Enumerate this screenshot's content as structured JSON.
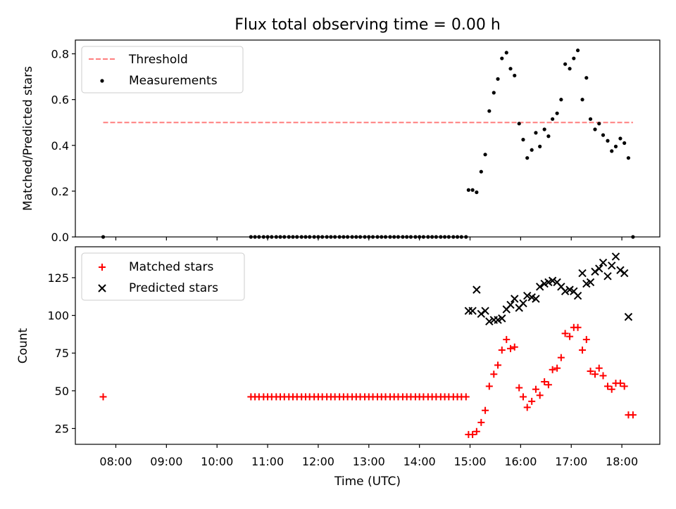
{
  "chart_data": [
    {
      "panel": "top",
      "type": "scatter",
      "title": "Flux total observing time = 0.00 h",
      "xlabel": "",
      "ylabel": "Matched/Predicted stars",
      "x_unit": "hour of day (UTC)",
      "xlim": [
        7.2,
        18.75
      ],
      "ylim": [
        0.0,
        0.86
      ],
      "yticks": [
        0.0,
        0.2,
        0.4,
        0.6,
        0.8
      ],
      "ytick_labels": [
        "0.0",
        "0.2",
        "0.4",
        "0.6",
        "0.8"
      ],
      "xticks": [
        8,
        9,
        10,
        11,
        12,
        13,
        14,
        15,
        16,
        17,
        18
      ],
      "grid": false,
      "legend_position": "upper-left",
      "series": [
        {
          "name": "Threshold",
          "kind": "line",
          "style": "dashed",
          "color": "#ff7f7f",
          "x": [
            7.75,
            18.22
          ],
          "y": [
            0.5,
            0.5
          ]
        },
        {
          "name": "Measurements",
          "kind": "scatter",
          "marker": "dot",
          "color": "#000000",
          "x": [
            7.75,
            10.67,
            10.75,
            10.83,
            10.92,
            11.0,
            11.08,
            11.17,
            11.25,
            11.33,
            11.42,
            11.5,
            11.58,
            11.67,
            11.75,
            11.83,
            11.92,
            12.0,
            12.08,
            12.17,
            12.25,
            12.33,
            12.42,
            12.5,
            12.58,
            12.67,
            12.75,
            12.83,
            12.92,
            13.0,
            13.08,
            13.17,
            13.25,
            13.33,
            13.42,
            13.5,
            13.58,
            13.67,
            13.75,
            13.83,
            13.92,
            14.0,
            14.08,
            14.17,
            14.25,
            14.33,
            14.42,
            14.5,
            14.58,
            14.67,
            14.75,
            14.83,
            14.92,
            14.97,
            15.05,
            15.13,
            15.22,
            15.3,
            15.38,
            15.47,
            15.55,
            15.63,
            15.72,
            15.8,
            15.88,
            15.97,
            16.05,
            16.13,
            16.22,
            16.3,
            16.38,
            16.47,
            16.55,
            16.63,
            16.72,
            16.8,
            16.88,
            16.97,
            17.05,
            17.13,
            17.22,
            17.3,
            17.38,
            17.47,
            17.55,
            17.63,
            17.72,
            17.8,
            17.88,
            17.97,
            18.05,
            18.13,
            18.22
          ],
          "y": [
            0.0,
            0.0,
            0.0,
            0.0,
            0.0,
            0.0,
            0.0,
            0.0,
            0.0,
            0.0,
            0.0,
            0.0,
            0.0,
            0.0,
            0.0,
            0.0,
            0.0,
            0.0,
            0.0,
            0.0,
            0.0,
            0.0,
            0.0,
            0.0,
            0.0,
            0.0,
            0.0,
            0.0,
            0.0,
            0.0,
            0.0,
            0.0,
            0.0,
            0.0,
            0.0,
            0.0,
            0.0,
            0.0,
            0.0,
            0.0,
            0.0,
            0.0,
            0.0,
            0.0,
            0.0,
            0.0,
            0.0,
            0.0,
            0.0,
            0.0,
            0.0,
            0.0,
            0.0,
            0.205,
            0.205,
            0.195,
            0.285,
            0.36,
            0.55,
            0.63,
            0.69,
            0.78,
            0.805,
            0.735,
            0.705,
            0.495,
            0.425,
            0.345,
            0.38,
            0.455,
            0.395,
            0.47,
            0.44,
            0.515,
            0.54,
            0.6,
            0.755,
            0.735,
            0.78,
            0.815,
            0.6,
            0.695,
            0.515,
            0.47,
            0.495,
            0.445,
            0.42,
            0.375,
            0.395,
            0.43,
            0.41,
            0.345,
            0.0
          ]
        }
      ]
    },
    {
      "panel": "bottom",
      "type": "scatter",
      "title": "",
      "xlabel": "Time (UTC)",
      "ylabel": "Count",
      "x_unit": "hour of day (UTC)",
      "xlim": [
        7.2,
        18.75
      ],
      "ylim": [
        14.5,
        145.5
      ],
      "yticks": [
        25,
        50,
        75,
        100,
        125
      ],
      "ytick_labels": [
        "25",
        "50",
        "75",
        "100",
        "125"
      ],
      "xticks": [
        8,
        9,
        10,
        11,
        12,
        13,
        14,
        15,
        16,
        17,
        18
      ],
      "xtick_labels": [
        "08:00",
        "09:00",
        "10:00",
        "11:00",
        "12:00",
        "13:00",
        "14:00",
        "15:00",
        "16:00",
        "17:00",
        "18:00"
      ],
      "grid": false,
      "legend_position": "upper-left",
      "series": [
        {
          "name": "Matched stars",
          "kind": "scatter",
          "marker": "plus",
          "color": "#ff0000",
          "x": [
            7.75,
            10.67,
            10.75,
            10.83,
            10.92,
            11.0,
            11.08,
            11.17,
            11.25,
            11.33,
            11.42,
            11.5,
            11.58,
            11.67,
            11.75,
            11.83,
            11.92,
            12.0,
            12.08,
            12.17,
            12.25,
            12.33,
            12.42,
            12.5,
            12.58,
            12.67,
            12.75,
            12.83,
            12.92,
            13.0,
            13.08,
            13.17,
            13.25,
            13.33,
            13.42,
            13.5,
            13.58,
            13.67,
            13.75,
            13.83,
            13.92,
            14.0,
            14.08,
            14.17,
            14.25,
            14.33,
            14.42,
            14.5,
            14.58,
            14.67,
            14.75,
            14.83,
            14.92,
            14.97,
            15.05,
            15.13,
            15.22,
            15.3,
            15.38,
            15.47,
            15.55,
            15.63,
            15.72,
            15.8,
            15.88,
            15.97,
            16.05,
            16.13,
            16.22,
            16.3,
            16.38,
            16.47,
            16.55,
            16.63,
            16.72,
            16.8,
            16.88,
            16.97,
            17.05,
            17.13,
            17.22,
            17.3,
            17.38,
            17.47,
            17.55,
            17.63,
            17.72,
            17.8,
            17.88,
            17.97,
            18.05,
            18.13,
            18.22
          ],
          "y": [
            46,
            46,
            46,
            46,
            46,
            46,
            46,
            46,
            46,
            46,
            46,
            46,
            46,
            46,
            46,
            46,
            46,
            46,
            46,
            46,
            46,
            46,
            46,
            46,
            46,
            46,
            46,
            46,
            46,
            46,
            46,
            46,
            46,
            46,
            46,
            46,
            46,
            46,
            46,
            46,
            46,
            46,
            46,
            46,
            46,
            46,
            46,
            46,
            46,
            46,
            46,
            46,
            46,
            21,
            21,
            23,
            29,
            37,
            53,
            61,
            67,
            77,
            84,
            78,
            79,
            52,
            46,
            39,
            43,
            51,
            47,
            56,
            54,
            64,
            65,
            72,
            88,
            86,
            92,
            92,
            77,
            84,
            63,
            61,
            65,
            60,
            53,
            51,
            55,
            55,
            53,
            34,
            34
          ]
        },
        {
          "name": "Predicted stars",
          "kind": "scatter",
          "marker": "x",
          "color": "#000000",
          "x": [
            14.97,
            15.05,
            15.13,
            15.22,
            15.3,
            15.38,
            15.47,
            15.55,
            15.63,
            15.72,
            15.8,
            15.88,
            15.97,
            16.05,
            16.13,
            16.22,
            16.3,
            16.38,
            16.47,
            16.55,
            16.63,
            16.72,
            16.8,
            16.88,
            16.97,
            17.05,
            17.13,
            17.22,
            17.3,
            17.38,
            17.47,
            17.55,
            17.63,
            17.72,
            17.8,
            17.88,
            17.97,
            18.05,
            18.13
          ],
          "y": [
            103,
            103,
            117,
            101,
            103,
            96,
            97,
            97,
            98,
            104,
            107,
            111,
            105,
            108,
            113,
            112,
            111,
            119,
            121,
            122,
            123,
            122,
            119,
            116,
            117,
            116,
            113,
            128,
            121,
            122,
            129,
            131,
            135,
            126,
            133,
            139,
            130,
            128,
            99
          ]
        }
      ]
    }
  ]
}
